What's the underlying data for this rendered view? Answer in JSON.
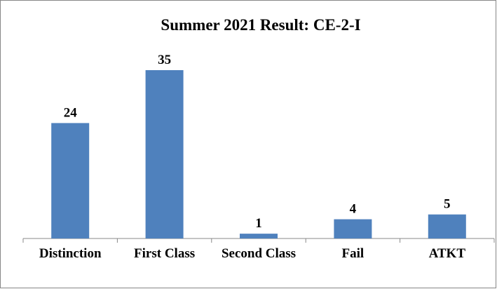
{
  "chart_data": {
    "type": "bar",
    "title": "Summer 2021 Result: CE-2-I",
    "categories": [
      "Distinction",
      "First Class",
      "Second Class",
      "Fail",
      "ATKT"
    ],
    "values": [
      24,
      35,
      1,
      4,
      5
    ],
    "color": "#4f81bd"
  }
}
